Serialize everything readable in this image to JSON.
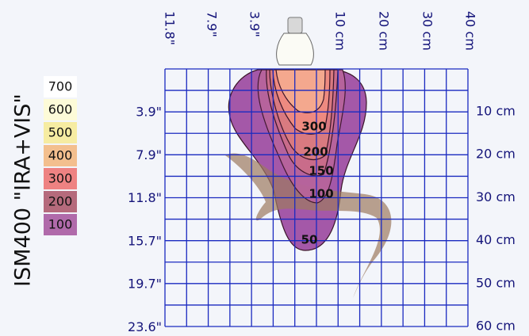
{
  "title": "ISM400 \"IRA+VIS\"",
  "legend": [
    {
      "label": "700",
      "color": "#ffffff"
    },
    {
      "label": "600",
      "color": "#fdfbd8"
    },
    {
      "label": "500",
      "color": "#f6eca2"
    },
    {
      "label": "400",
      "color": "#f3bf8e"
    },
    {
      "label": "300",
      "color": "#ee8282"
    },
    {
      "label": "200",
      "color": "#b56a7c"
    },
    {
      "label": "100",
      "color": "#b06aaa"
    }
  ],
  "top_labels": [
    "11.8\"",
    "7.9\"",
    "3.9\"",
    "10 cm",
    "20 cm",
    "30 cm",
    "40 cm"
  ],
  "left_labels": [
    "3.9\"",
    "7.9\"",
    "11.8\"",
    "15.7\"",
    "19.7\"",
    "23.6\""
  ],
  "right_labels": [
    "10 cm",
    "20 cm",
    "30 cm",
    "40 cm",
    "50 cm",
    "60 cm"
  ],
  "contour_labels": [
    "300",
    "200",
    "150",
    "100",
    "50"
  ]
}
